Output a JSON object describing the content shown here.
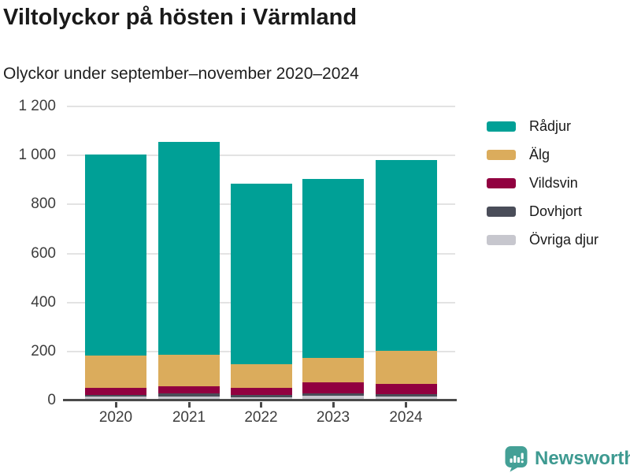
{
  "header": {
    "title": "Viltolyckor på hösten i Värmland",
    "subtitle": "Olyckor under september–november 2020–2024"
  },
  "chart_data": {
    "type": "bar",
    "stacked": true,
    "title": "Viltolyckor på hösten i Värmland",
    "subtitle": "Olyckor under september–november 2020–2024",
    "categories": [
      "2020",
      "2021",
      "2022",
      "2023",
      "2024"
    ],
    "series": [
      {
        "name": "Rådjur",
        "color": "#00a096",
        "values": [
          820,
          868,
          737,
          729,
          779
        ]
      },
      {
        "name": "Älg",
        "color": "#dbac5c",
        "values": [
          135,
          128,
          99,
          101,
          137
        ]
      },
      {
        "name": "Vildsvin",
        "color": "#910040",
        "values": [
          27,
          31,
          28,
          46,
          40
        ]
      },
      {
        "name": "Dovhjort",
        "color": "#4a4d59",
        "values": [
          8,
          11,
          8,
          8,
          10
        ]
      },
      {
        "name": "Övriga djur",
        "color": "#c7c7ce",
        "values": [
          15,
          17,
          14,
          20,
          16
        ]
      }
    ],
    "stack_order_bottom_to_top": [
      "Övriga djur",
      "Dovhjort",
      "Vildsvin",
      "Älg",
      "Rådjur"
    ],
    "xlabel": "",
    "ylabel": "",
    "ylim": [
      0,
      1200
    ],
    "ytick_interval": 200,
    "ytick_labels": [
      "0",
      "200",
      "400",
      "600",
      "800",
      "1 000",
      "1 200"
    ],
    "grid": true,
    "legend_position": "right"
  },
  "footer": {
    "brand": "Newsworthy",
    "brand_color": "#3e9a91",
    "logo_icon": "bar-chart-speech-bubble-icon",
    "logo_color": "#44a096"
  }
}
